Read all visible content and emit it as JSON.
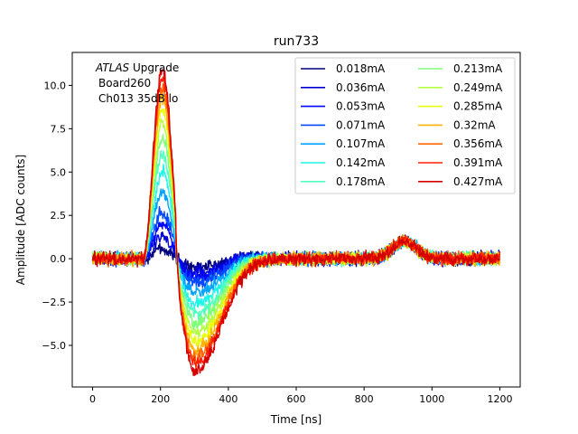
{
  "chart_data": {
    "type": "line",
    "title": "run733",
    "xlabel": "Time [ns]",
    "ylabel": "Amplitude [ADC counts]",
    "xlim": [
      -60,
      1260
    ],
    "ylim": [
      -7.4,
      11.9
    ],
    "xticks": [
      0,
      200,
      400,
      600,
      800,
      1000,
      1200
    ],
    "yticks": [
      -5.0,
      -2.5,
      0.0,
      2.5,
      5.0,
      7.5,
      10.0
    ],
    "ytick_labels": [
      "−5.0",
      "−2.5",
      "0.0",
      "2.5",
      "5.0",
      "7.5",
      "10.0"
    ],
    "grid": false,
    "legend_location": "top-right",
    "legend_columns": 2,
    "annotation": {
      "experiment_italic": "ATLAS",
      "experiment_rest": " Upgrade",
      "line2": "Board260",
      "line3": "Ch013 35dB lo"
    },
    "pulse_shape": {
      "baseline": 0.0,
      "peak_time_ns": 200,
      "undershoot_time_ns": 300,
      "secondary_bump_time_ns": 920,
      "secondary_bump_amplitude": 1.0,
      "noise_rms": 0.22
    },
    "series": [
      {
        "name": "0.018mA",
        "color": "#00007f",
        "peak": 0.6,
        "undershoot": -0.5
      },
      {
        "name": "0.036mA",
        "color": "#0000d4",
        "peak": 1.3,
        "undershoot": -0.8
      },
      {
        "name": "0.053mA",
        "color": "#0000ff",
        "peak": 2.0,
        "undershoot": -1.1
      },
      {
        "name": "0.071mA",
        "color": "#0048ff",
        "peak": 2.7,
        "undershoot": -1.4
      },
      {
        "name": "0.107mA",
        "color": "#00a4ff",
        "peak": 3.8,
        "undershoot": -2.0
      },
      {
        "name": "0.142mA",
        "color": "#1ff4e9",
        "peak": 5.0,
        "undershoot": -2.6
      },
      {
        "name": "0.178mA",
        "color": "#50ffbf",
        "peak": 6.0,
        "undershoot": -3.2
      },
      {
        "name": "0.213mA",
        "color": "#7dff7a",
        "peak": 6.9,
        "undershoot": -3.7
      },
      {
        "name": "0.249mA",
        "color": "#b4ff43",
        "peak": 7.8,
        "undershoot": -4.3
      },
      {
        "name": "0.285mA",
        "color": "#e9ff0d",
        "peak": 8.6,
        "undershoot": -4.8
      },
      {
        "name": "0.32mA",
        "color": "#ffb300",
        "peak": 9.3,
        "undershoot": -5.3
      },
      {
        "name": "0.356mA",
        "color": "#ff6800",
        "peak": 9.9,
        "undershoot": -5.7
      },
      {
        "name": "0.391mA",
        "color": "#ff2000",
        "peak": 10.4,
        "undershoot": -6.1
      },
      {
        "name": "0.427mA",
        "color": "#d40000",
        "peak": 10.9,
        "undershoot": -6.5
      }
    ]
  }
}
